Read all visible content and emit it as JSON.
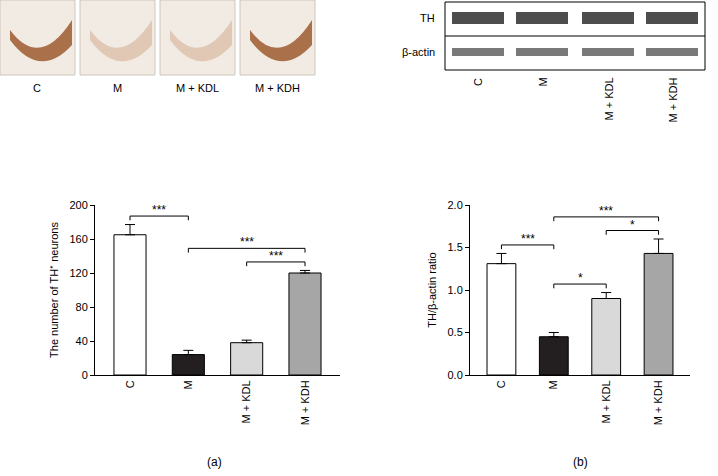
{
  "chart_data": [
    {
      "type": "bar",
      "title": "(a)",
      "categories": [
        "C",
        "M",
        "M + KDL",
        "M + KDH"
      ],
      "values": [
        165,
        24,
        38,
        120
      ],
      "errors": [
        12,
        5,
        3,
        3
      ],
      "colors": [
        "#ffffff",
        "#231f20",
        "#d9d9d9",
        "#a6a6a6"
      ],
      "y_label": "The number of TH⁺ neurons",
      "ylim": [
        0,
        200
      ],
      "yticks": [
        0,
        40,
        80,
        120,
        160,
        200
      ],
      "grid": false,
      "significance": [
        {
          "from": "C",
          "to": "M",
          "label": "***"
        },
        {
          "from": "M",
          "to": "M + KDH",
          "label": "***"
        },
        {
          "from": "M + KDL",
          "to": "M + KDH",
          "label": "***"
        }
      ]
    },
    {
      "type": "bar",
      "title": "(b)",
      "categories": [
        "C",
        "M",
        "M + KDL",
        "M + KDH"
      ],
      "values": [
        1.31,
        0.45,
        0.9,
        1.43
      ],
      "errors": [
        0.12,
        0.05,
        0.07,
        0.17
      ],
      "colors": [
        "#ffffff",
        "#231f20",
        "#d9d9d9",
        "#a6a6a6"
      ],
      "y_label": "TH/β-actin ratio",
      "ylim": [
        0,
        2
      ],
      "yticks": [
        {
          "value": 0,
          "label": "0.0"
        },
        {
          "value": 0.5,
          "label": "0.5"
        },
        {
          "value": 1,
          "label": "1.0"
        },
        {
          "value": 1.5,
          "label": "1.5"
        },
        {
          "value": 2,
          "label": "2.0"
        }
      ],
      "grid": false,
      "significance": [
        {
          "from": "C",
          "to": "M",
          "label": "***"
        },
        {
          "from": "M",
          "to": "M + KDL",
          "label": "*"
        },
        {
          "from": "M",
          "to": "M + KDH",
          "label": "***"
        },
        {
          "from": "M + KDL",
          "to": "M + KDH",
          "label": "*"
        }
      ]
    }
  ],
  "micrographs": {
    "labels": [
      "C",
      "M",
      "M + KDL",
      "M + KDH"
    ]
  },
  "western_blot": {
    "bands": [
      "TH",
      "β-actin"
    ],
    "lanes": [
      "C",
      "M",
      "M + KDL",
      "M + KDH"
    ]
  }
}
